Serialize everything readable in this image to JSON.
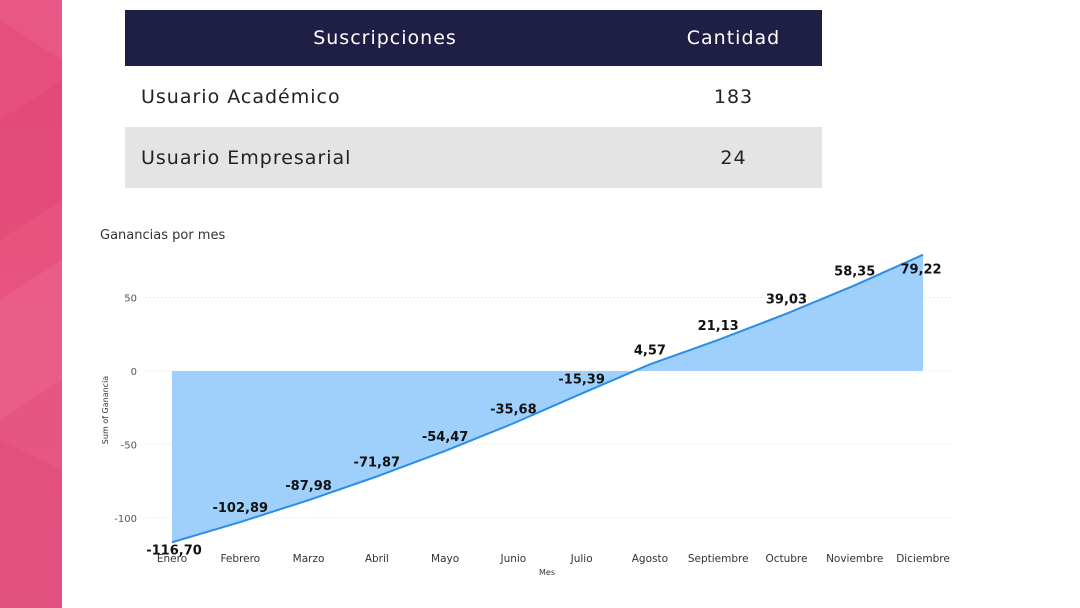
{
  "table": {
    "headers": [
      "Suscripciones",
      "Cantidad"
    ],
    "rows": [
      {
        "name": "Usuario Académico",
        "value": "183"
      },
      {
        "name": "Usuario Empresarial",
        "value": "24"
      }
    ]
  },
  "colors": {
    "accent": "#e64d7e",
    "header_bg": "#1f1f45",
    "area_fill": "#9fd0fb",
    "line": "#2b8de8"
  },
  "chart_data": {
    "type": "area",
    "title": "Ganancias por mes",
    "xlabel": "Mes",
    "ylabel": "Sum of Ganancia",
    "categories": [
      "Enero",
      "Febrero",
      "Marzo",
      "Abril",
      "Mayo",
      "Junio",
      "Julio",
      "Agosto",
      "Septiembre",
      "Octubre",
      "Noviembre",
      "Diciembre"
    ],
    "values": [
      -116.7,
      -102.89,
      -87.98,
      -71.87,
      -54.47,
      -35.68,
      -15.39,
      4.57,
      21.13,
      39.03,
      58.35,
      79.22
    ],
    "labels": [
      "-116,70",
      "-102,89",
      "-87,98",
      "-71,87",
      "-54,47",
      "-35,68",
      "-15,39",
      "4,57",
      "21,13",
      "39,03",
      "58,35",
      "79,22"
    ],
    "yticks": [
      50,
      0,
      -50,
      -100
    ],
    "ylim": [
      -120,
      85
    ],
    "grid": true,
    "legend": "none"
  }
}
